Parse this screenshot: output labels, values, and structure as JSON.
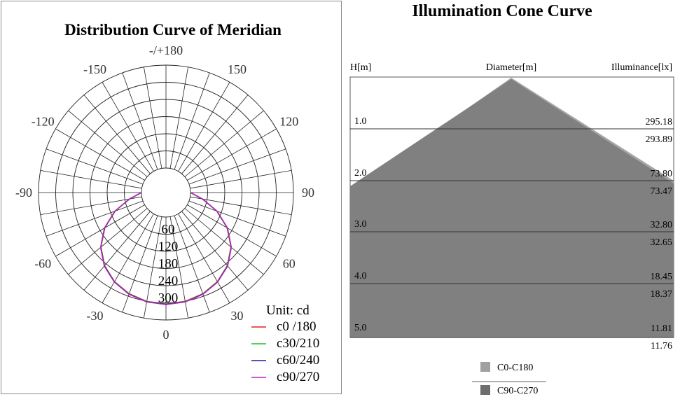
{
  "polar": {
    "title": "Distribution Curve of  Meridian",
    "unit_label": "Unit: cd",
    "angle_labels": [
      "-/+180",
      "150",
      "120",
      "90",
      "60",
      "-30",
      "0",
      "30",
      "-60",
      "-90",
      "-120",
      "-150"
    ],
    "angle_values": [
      180,
      150,
      120,
      90,
      60,
      -30,
      0,
      30,
      -60,
      -90,
      -120,
      -150
    ],
    "ring_labels": [
      "60",
      "120",
      "180",
      "240",
      "300"
    ],
    "legend": [
      {
        "label": "c0 /180",
        "color": "#e02020"
      },
      {
        "label": "c30/210",
        "color": "#20c020"
      },
      {
        "label": "c60/240",
        "color": "#1a1aa8"
      },
      {
        "label": "c90/270",
        "color": "#c020c8"
      }
    ]
  },
  "cone": {
    "title": "Illumination Cone Curve",
    "header_h": "H[m]",
    "header_diameter": "Diameter[m]",
    "header_illuminance": "Illuminance[lx]",
    "heights": [
      "1.0",
      "2.0",
      "3.0",
      "4.0",
      "5.0"
    ],
    "illuminance_upper": [
      "295.18",
      "73.80",
      "32.80",
      "18.45",
      "11.81"
    ],
    "illuminance_lower": [
      "293.89",
      "73.47",
      "32.65",
      "18.37",
      "11.76"
    ],
    "legend": [
      {
        "label": "C0-C180",
        "color": "#a0a0a0"
      },
      {
        "label": "C90-C270",
        "color": "#6e6e6e"
      }
    ]
  },
  "chart_data": [
    {
      "type": "polar",
      "title": "Distribution Curve of  Meridian",
      "unit": "cd",
      "radial_ticks": [
        60,
        120,
        180,
        240,
        300
      ],
      "radial_max": 360,
      "angles_deg": [
        0,
        10,
        20,
        30,
        40,
        50,
        60,
        70,
        80,
        90
      ],
      "series": [
        {
          "name": "c0 /180",
          "color": "#e02020",
          "values": [
            305,
            302,
            292,
            275,
            249,
            212,
            162,
            104,
            44,
            0
          ]
        },
        {
          "name": "c30/210",
          "color": "#20c020",
          "values": [
            305,
            302,
            292,
            275,
            249,
            212,
            162,
            104,
            44,
            0
          ]
        },
        {
          "name": "c60/240",
          "color": "#1a1aa8",
          "values": [
            305,
            302,
            292,
            275,
            249,
            212,
            162,
            104,
            44,
            0
          ]
        },
        {
          "name": "c90/270",
          "color": "#c020c8",
          "values": [
            305,
            302,
            292,
            275,
            249,
            212,
            162,
            104,
            44,
            0
          ]
        }
      ]
    },
    {
      "type": "table",
      "title": "Illumination Cone Curve",
      "columns": [
        "H[m]",
        "Diameter[m]",
        "Illuminance[lx]"
      ],
      "rows": [
        {
          "h": 1.0,
          "illuminance_c0_c180": 295.18,
          "illuminance_c90_c270": 293.89
        },
        {
          "h": 2.0,
          "illuminance_c0_c180": 73.8,
          "illuminance_c90_c270": 73.47
        },
        {
          "h": 3.0,
          "illuminance_c0_c180": 32.8,
          "illuminance_c90_c270": 32.65
        },
        {
          "h": 4.0,
          "illuminance_c0_c180": 18.45,
          "illuminance_c90_c270": 18.37
        },
        {
          "h": 5.0,
          "illuminance_c0_c180": 11.81,
          "illuminance_c90_c270": 11.76
        }
      ],
      "series": [
        {
          "name": "C0-C180",
          "color": "#a0a0a0"
        },
        {
          "name": "C90-C270",
          "color": "#6e6e6e"
        }
      ]
    }
  ]
}
